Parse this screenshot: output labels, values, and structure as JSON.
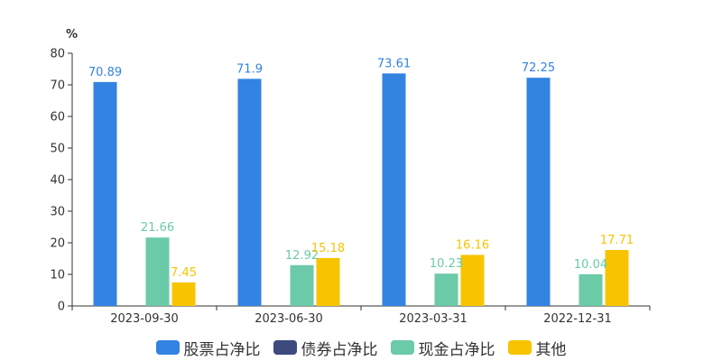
{
  "chart_data": {
    "type": "bar",
    "title": "",
    "ylabel": "%",
    "xlabel": "",
    "ylim": [
      0,
      80
    ],
    "yticks": [
      0,
      10,
      20,
      30,
      40,
      50,
      60,
      70,
      80
    ],
    "grid": false,
    "legend_position": "bottom-center",
    "categories": [
      "2023-09-30",
      "2023-06-30",
      "2023-03-31",
      "2022-12-31"
    ],
    "series": [
      {
        "name": "股票占净比",
        "color": "#3383e2",
        "values": [
          70.89,
          71.9,
          73.61,
          72.25
        ],
        "labels": [
          "70.89",
          "71.9",
          "73.61",
          "72.25"
        ]
      },
      {
        "name": "债券占净比",
        "color": "#3c4a7e",
        "values": [
          0,
          0,
          0,
          0
        ],
        "labels": [
          "",
          "",
          "",
          ""
        ]
      },
      {
        "name": "现金占净比",
        "color": "#6bcaa8",
        "values": [
          21.66,
          12.92,
          10.23,
          10.04
        ],
        "labels": [
          "21.66",
          "12.92",
          "10.23",
          "10.04"
        ]
      },
      {
        "name": "其他",
        "color": "#f8c400",
        "values": [
          7.45,
          15.18,
          16.16,
          17.71
        ],
        "labels": [
          "7.45",
          "15.18",
          "16.16",
          "17.71"
        ]
      }
    ]
  }
}
